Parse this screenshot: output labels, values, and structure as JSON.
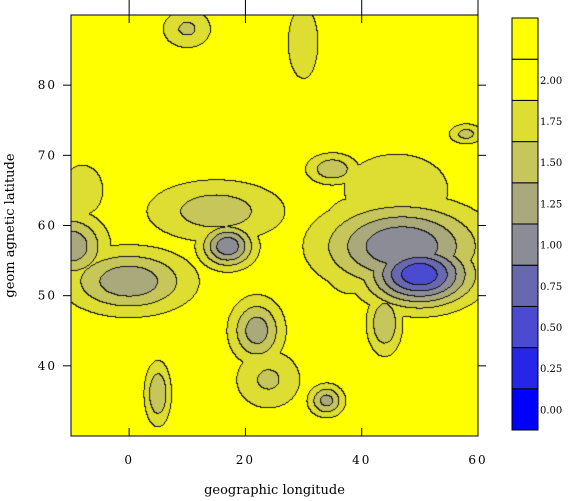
{
  "chart_data": {
    "type": "heatmap",
    "subtype": "filled-contour",
    "title": "",
    "xlabel": "geographic longitude",
    "ylabel": "geom agnetic latitude",
    "xlim": [
      -10,
      60
    ],
    "ylim": [
      30,
      90
    ],
    "x_ticks": [
      "0",
      "20",
      "40",
      "60"
    ],
    "y_ticks": [
      "40",
      "50",
      "60",
      "70",
      "80"
    ],
    "colorbar": {
      "levels": [
        0.0,
        0.25,
        0.5,
        0.75,
        1.0,
        1.25,
        1.5,
        1.75,
        2.0
      ],
      "labels": [
        "0.00",
        "0.25",
        "0.50",
        "0.75",
        "1.00",
        "1.25",
        "1.50",
        "1.75",
        "2.00"
      ],
      "colors": [
        "#0000ff",
        "#2626e8",
        "#4b4bd2",
        "#6868b0",
        "#8c8c96",
        "#a9a97c",
        "#c6c65a",
        "#dddd32",
        "#ffff00"
      ],
      "max_color": "#ffff00"
    },
    "colormap": "blue-to-yellow",
    "background_value": 2.2,
    "features": [
      {
        "x": 50,
        "y": 53,
        "value": 0.55,
        "sx": 6,
        "sy": 3
      },
      {
        "x": 47,
        "y": 57,
        "value": 1.0,
        "sx": 9,
        "sy": 4
      },
      {
        "x": 17,
        "y": 57,
        "value": 1.05,
        "sx": 3,
        "sy": 2
      },
      {
        "x": 0,
        "y": 52,
        "value": 1.3,
        "sx": 7,
        "sy": 3
      },
      {
        "x": -10,
        "y": 57,
        "value": 1.3,
        "sx": 4,
        "sy": 3
      },
      {
        "x": 22,
        "y": 45,
        "value": 1.35,
        "sx": 3,
        "sy": 3
      },
      {
        "x": 34,
        "y": 35,
        "value": 1.4,
        "sx": 2,
        "sy": 1.5
      },
      {
        "x": 5,
        "y": 36,
        "value": 1.5,
        "sx": 1.5,
        "sy": 3
      },
      {
        "x": 38,
        "y": 57,
        "value": 1.7,
        "sx": 4,
        "sy": 5
      },
      {
        "x": 46,
        "y": 65,
        "value": 1.75,
        "sx": 7,
        "sy": 4
      },
      {
        "x": 15,
        "y": 62,
        "value": 1.6,
        "sx": 8,
        "sy": 3
      },
      {
        "x": 35,
        "y": 68,
        "value": 1.55,
        "sx": 3,
        "sy": 1.5
      },
      {
        "x": 30,
        "y": 86,
        "value": 1.75,
        "sx": 2,
        "sy": 4
      },
      {
        "x": 10,
        "y": 88,
        "value": 1.7,
        "sx": 3,
        "sy": 2
      },
      {
        "x": 58,
        "y": 73,
        "value": 1.65,
        "sx": 2,
        "sy": 1
      },
      {
        "x": 44,
        "y": 46,
        "value": 1.5,
        "sx": 2,
        "sy": 3
      },
      {
        "x": 24,
        "y": 38,
        "value": 1.7,
        "sx": 4,
        "sy": 3
      },
      {
        "x": -8,
        "y": 65,
        "value": 1.8,
        "sx": 3,
        "sy": 3
      }
    ]
  }
}
